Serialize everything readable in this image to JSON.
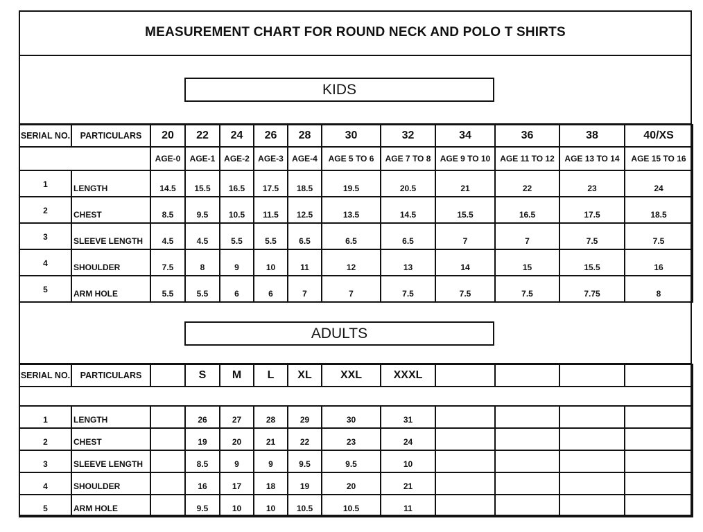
{
  "title": "MEASUREMENT CHART FOR ROUND NECK AND POLO T SHIRTS",
  "kids": {
    "banner": "KIDS",
    "header": {
      "serial": "SERIAL NO.",
      "particulars": "PARTICULARS",
      "sizes": [
        "20",
        "22",
        "24",
        "26",
        "28",
        "30",
        "32",
        "34",
        "36",
        "38",
        "40/XS"
      ]
    },
    "ages": [
      "AGE-0",
      "AGE-1",
      "AGE-2",
      "AGE-3",
      "AGE-4",
      "AGE 5  TO 6",
      "AGE 7  TO 8",
      "AGE  9  TO 10",
      "AGE  11 TO  12",
      "AGE 13  TO 14",
      "AGE  15  TO 16"
    ],
    "rows": [
      {
        "serial": "1",
        "particular": "LENGTH",
        "values": [
          "14.5",
          "15.5",
          "16.5",
          "17.5",
          "18.5",
          "19.5",
          "20.5",
          "21",
          "22",
          "23",
          "24"
        ]
      },
      {
        "serial": "2",
        "particular": "CHEST",
        "values": [
          "8.5",
          "9.5",
          "10.5",
          "11.5",
          "12.5",
          "13.5",
          "14.5",
          "15.5",
          "16.5",
          "17.5",
          "18.5"
        ]
      },
      {
        "serial": "3",
        "particular": "SLEEVE LENGTH",
        "values": [
          "4.5",
          "4.5",
          "5.5",
          "5.5",
          "6.5",
          "6.5",
          "6.5",
          "7",
          "7",
          "7.5",
          "7.5"
        ]
      },
      {
        "serial": "4",
        "particular": "SHOULDER",
        "values": [
          "7.5",
          "8",
          "9",
          "10",
          "11",
          "12",
          "13",
          "14",
          "15",
          "15.5",
          "16"
        ]
      },
      {
        "serial": "5",
        "particular": "ARM HOLE",
        "values": [
          "5.5",
          "5.5",
          "6",
          "6",
          "7",
          "7",
          "7.5",
          "7.5",
          "7.5",
          "7.75",
          "8"
        ]
      }
    ]
  },
  "adults": {
    "banner": "ADULTS",
    "header": {
      "serial": "SERIAL NO.",
      "particulars": "PARTICULARS",
      "sizes": [
        "",
        "S",
        "M",
        "L",
        "XL",
        "XXL",
        "XXXL",
        "",
        "",
        "",
        ""
      ]
    },
    "rows": [
      {
        "serial": "1",
        "particular": "LENGTH",
        "values": [
          "",
          "26",
          "27",
          "28",
          "29",
          "30",
          "31",
          "",
          "",
          "",
          ""
        ]
      },
      {
        "serial": "2",
        "particular": "CHEST",
        "values": [
          "",
          "19",
          "20",
          "21",
          "22",
          "23",
          "24",
          "",
          "",
          "",
          ""
        ]
      },
      {
        "serial": "3",
        "particular": "SLEEVE LENGTH",
        "values": [
          "",
          "8.5",
          "9",
          "9",
          "9.5",
          "9.5",
          "10",
          "",
          "",
          "",
          ""
        ]
      },
      {
        "serial": "4",
        "particular": "SHOULDER",
        "values": [
          "",
          "16",
          "17",
          "18",
          "19",
          "20",
          "21",
          "",
          "",
          "",
          ""
        ]
      },
      {
        "serial": "5",
        "particular": "ARM HOLE",
        "values": [
          "",
          "9.5",
          "10",
          "10",
          "10.5",
          "10.5",
          "11",
          "",
          "",
          "",
          ""
        ]
      }
    ]
  }
}
